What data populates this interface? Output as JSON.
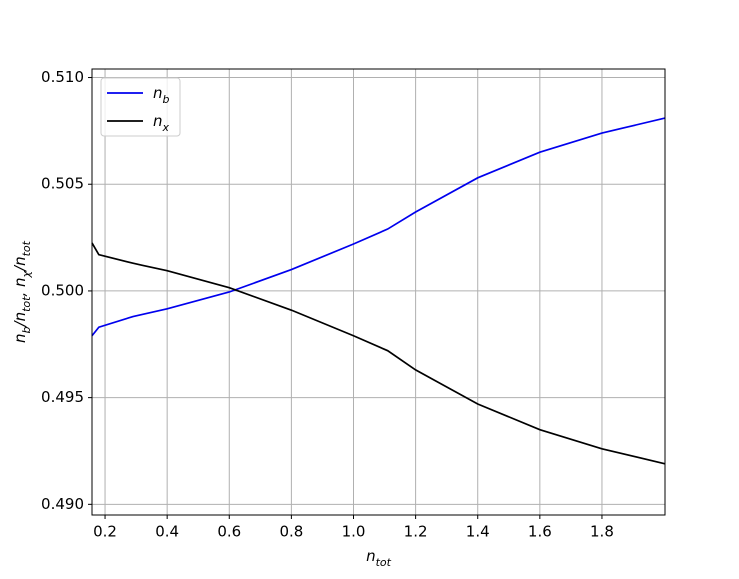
{
  "chart_data": {
    "type": "line",
    "xlabel": "n_tot",
    "ylabel": "n_b/n_tot, n_χ/n_tot",
    "x": [
      0.158,
      0.18,
      0.29,
      0.32,
      0.4,
      0.6,
      0.8,
      1.0,
      1.11,
      1.2,
      1.4,
      1.6,
      1.8,
      2.003
    ],
    "series": [
      {
        "name": "n_b",
        "color": "#0000ee",
        "values": [
          0.4979,
          0.4983,
          0.4988,
          0.4989,
          0.49916,
          0.49995,
          0.501,
          0.5022,
          0.5029,
          0.5037,
          0.5053,
          0.5065,
          0.5074,
          0.5081
        ]
      },
      {
        "name": "n_x",
        "color": "#000000",
        "values": [
          0.50225,
          0.5017,
          0.5013,
          0.5012,
          0.50095,
          0.50015,
          0.4991,
          0.4979,
          0.4972,
          0.4963,
          0.4947,
          0.4935,
          0.4926,
          0.4919
        ]
      }
    ],
    "xlim": [
      0.158,
      2.003
    ],
    "ylim": [
      0.4895,
      0.5104
    ],
    "xticks": [
      0.2,
      0.4,
      0.6,
      0.8,
      {
        "value": 1.0,
        "label": "1.0"
      },
      1.2,
      1.4,
      1.6,
      1.8
    ],
    "yticks": [
      {
        "value": 0.49,
        "label": "0.490"
      },
      0.495,
      {
        "value": 0.5,
        "label": "0.500"
      },
      0.505,
      {
        "value": 0.51,
        "label": "0.510"
      }
    ],
    "grid": true,
    "legend": "upper-left"
  }
}
